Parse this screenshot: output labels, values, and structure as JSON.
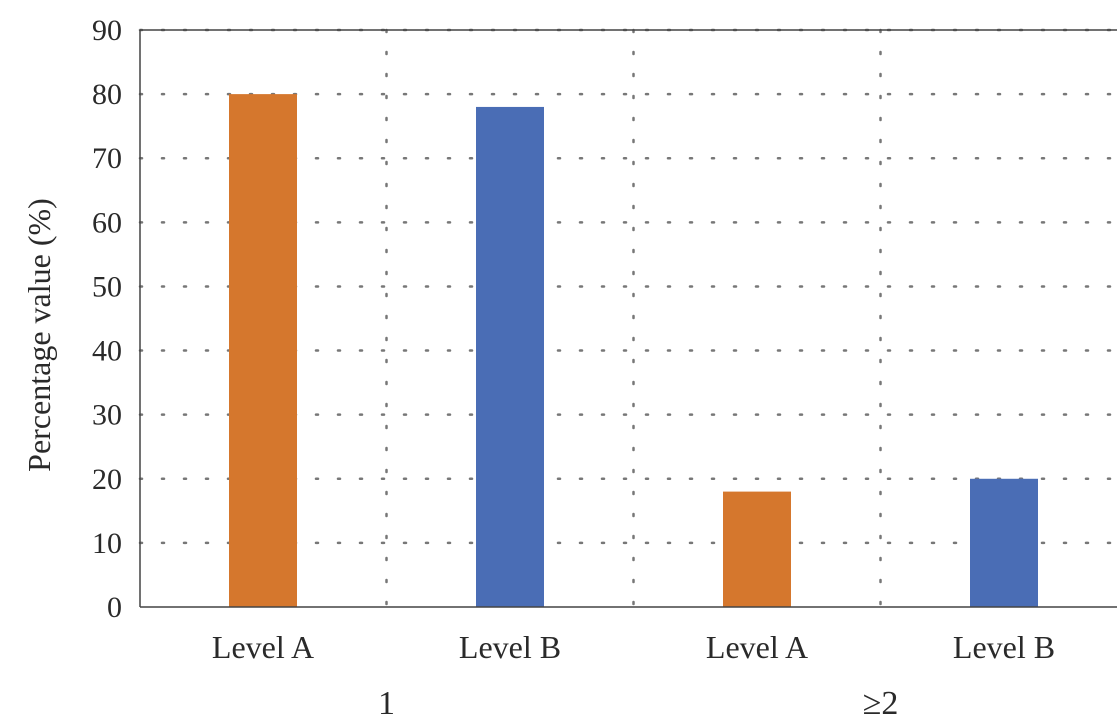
{
  "chart_data": {
    "type": "bar",
    "title": "",
    "ylabel": "Percentage value (%)",
    "xlabel": "",
    "ylim": [
      0,
      90
    ],
    "yticks": [
      0,
      10,
      20,
      30,
      40,
      50,
      60,
      70,
      80,
      90
    ],
    "grid": true,
    "grid_style": "dotted",
    "legend": "none",
    "groups": [
      {
        "label": "1",
        "bars": [
          {
            "category": "Level A",
            "value": 80,
            "color": "#D5772D"
          },
          {
            "category": "Level B",
            "value": 78,
            "color": "#4A6DB5"
          }
        ]
      },
      {
        "label": "≥2",
        "bars": [
          {
            "category": "Level A",
            "value": 18,
            "color": "#D5772D"
          },
          {
            "category": "Level B",
            "value": 20,
            "color": "#4A6DB5"
          }
        ]
      }
    ]
  }
}
